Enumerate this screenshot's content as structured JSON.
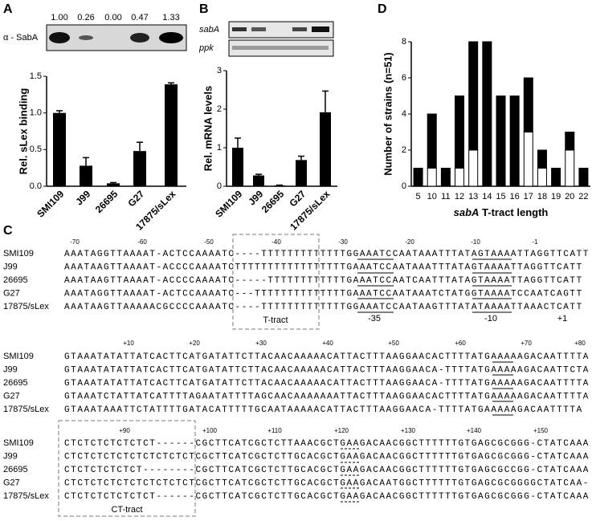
{
  "panel_labels": [
    "A",
    "B",
    "C",
    "D"
  ],
  "chart_data": [
    {
      "type": "bar",
      "categories": [
        "SMI109",
        "J99",
        "26695",
        "G27",
        "17875/sLex"
      ],
      "values": [
        1.0,
        0.28,
        0.04,
        0.48,
        1.39
      ],
      "errors": [
        0.03,
        0.11,
        0.01,
        0.12,
        0.02
      ],
      "color": "#000000",
      "ylim": [
        0,
        1.5
      ],
      "yticks": [
        {
          "value": 0,
          "label": "0.0"
        },
        0.5,
        {
          "value": 1,
          "label": "1.0"
        },
        1.5
      ],
      "ylabel": "Rel. sLex binding",
      "blot_label": "α - SabA",
      "blot_values": [
        "1.00",
        "0.26",
        "0.00",
        "0.47",
        "1.33"
      ]
    },
    {
      "type": "bar",
      "categories": [
        "SMI109",
        "J99",
        "26695",
        "G27",
        "17875/sLex"
      ],
      "values": [
        1.0,
        0.28,
        0.02,
        0.68,
        1.92
      ],
      "errors": [
        0.25,
        0.03,
        0.01,
        0.1,
        0.55
      ],
      "color": "#000000",
      "ylim": [
        0,
        3
      ],
      "yticks": [
        0,
        1,
        2,
        3
      ],
      "ylabel": "Rel. mRNA levels",
      "gel_labels": [
        "sabA",
        "ppk"
      ]
    },
    {
      "type": "stacked_bar",
      "categories": [
        "5",
        "10",
        "11",
        "12",
        "13",
        "14",
        "15",
        "16",
        "17",
        "18",
        "19",
        "20",
        "22"
      ],
      "series": [
        {
          "color": "#ffffff",
          "values": [
            0,
            1,
            0,
            1,
            2,
            0,
            0,
            0,
            3,
            1,
            0,
            2,
            0
          ]
        },
        {
          "color": "#000000",
          "values": [
            1,
            3,
            1,
            4,
            6,
            8,
            5,
            5,
            3,
            1,
            1,
            1,
            1
          ]
        }
      ],
      "ylim": [
        0,
        8
      ],
      "yticks": [
        0,
        2,
        4,
        6,
        8
      ],
      "ylabel": "Number of strains (n=51)",
      "xlabel_gene": "sabA",
      "xlabel": "T-tract length"
    }
  ],
  "alignment": {
    "strains": [
      "SMI109",
      "J99",
      "26695",
      "G27",
      "17875/sLex"
    ],
    "blocks": [
      {
        "ruler": [
          "-70",
          "-60",
          "-50",
          "-40",
          "-30",
          "-20",
          "-10",
          "-1"
        ],
        "rows": [
          "AAATAGGTTAAAAT-ACTCCAAAATC----TTTTTTTTTTTTTGGAAATCCAATAAATTTATAGTAAAATTAGGTTCATT",
          "AAATAAGTTAAAAT-ACCCCAAAATCTTTTTTTTTTTTTTTTTGAAATCCAATAAATTTATAGTAAAATTAGGTTCATT",
          "AAATAAGTTAAAAT-ACCCCAAAATC-----TTTTTTTTTTTTGAAATCCAATCAATTTATAGTAAAATTAGGTTCATT",
          "AAATAGGTTAAAAT-ACTCCAAAATC---TTTTTTTTTTTTTTGAAATCCAATAAATCTATGGTAAAATCCAATCAGTT",
          "AAATAAGTTAAAAACGCCCCAAAATC----TTTTTTTTTTTTTGGAAATCCAATAAGTTTATATAAAATTAAACTCATT"
        ]
      },
      {
        "ruler": [
          "+10",
          "+20",
          "+30",
          "+40",
          "+50",
          "+60",
          "+70",
          "+80"
        ],
        "rows": [
          "GTAAATATATTATCACTTCATGATATTCTTACAACAAAAACATTACTTTAAGGAACACTTTTATGAAAAAGACAATTTTA",
          "GTAAATATATTATCACTTCATGATATTCTTACAACAAAAACATTACTTTAAGGAACA-TTTTATGAAAAAGACAATTCTA",
          "GTAAATATATTATCACTTCATGATATTCTTACAACAAAAACATTACTTTAAGGAACA-TTTTATGAAAAAGACAATTTTA",
          "GTAAATCTATTATCATTTTAGAATATTTTAGCAACAAAAAAATTACTTTAAGGAACACTTTTATGAAAAAGACAATTTTA",
          "GTAAATAAATTCTATTTTGATACATTTTTGCAATAAAAACATTACTTTAAGGAACA-TTTTATGAAAAAGACAATTTTA"
        ]
      },
      {
        "ruler": [
          "+90",
          "+100",
          "+110",
          "+120",
          "+130",
          "+140",
          "+150"
        ],
        "rows": [
          "CTCTCTCTCTCTCT------CGCTTCATCGCTCTTAAACGCTGAAGACAACGGCTTTTTTGTGAGCGCGGG-CTATCAAA",
          "CTCTCTCTCTCTCTCTCTCTCGCTTCATCGCTCTTGCACGCTGAAGACAACGGCTTTTTTGTGAGCGCGGG-CTATCAAA",
          "CTCTCTCTCTCT--------CGCTTCATCGCTCTTGCACGCTGAAGACAACGGCTTTTTTGTGAGCGCCGG-CTATCAAA",
          "CTCTCTCTCTCTCTCTCTCTCGCTTCATCGCTCTTGCACGCTGAAGACAATGGCTTTTTTGTGAGCGCGGGGCTATCAA-",
          "CTCTCTCTCTCTCT------CGCTTCATCGCTCTTGCACGCTGAAGACAACGGCTTTTTTGTGAGCGCGGG-CTATCAAA"
        ]
      }
    ],
    "annotations": {
      "t_tract": "T-tract",
      "minus35": "-35",
      "minus10": "-10",
      "plus1": "+1",
      "ct_tract": "CT-tract"
    }
  }
}
